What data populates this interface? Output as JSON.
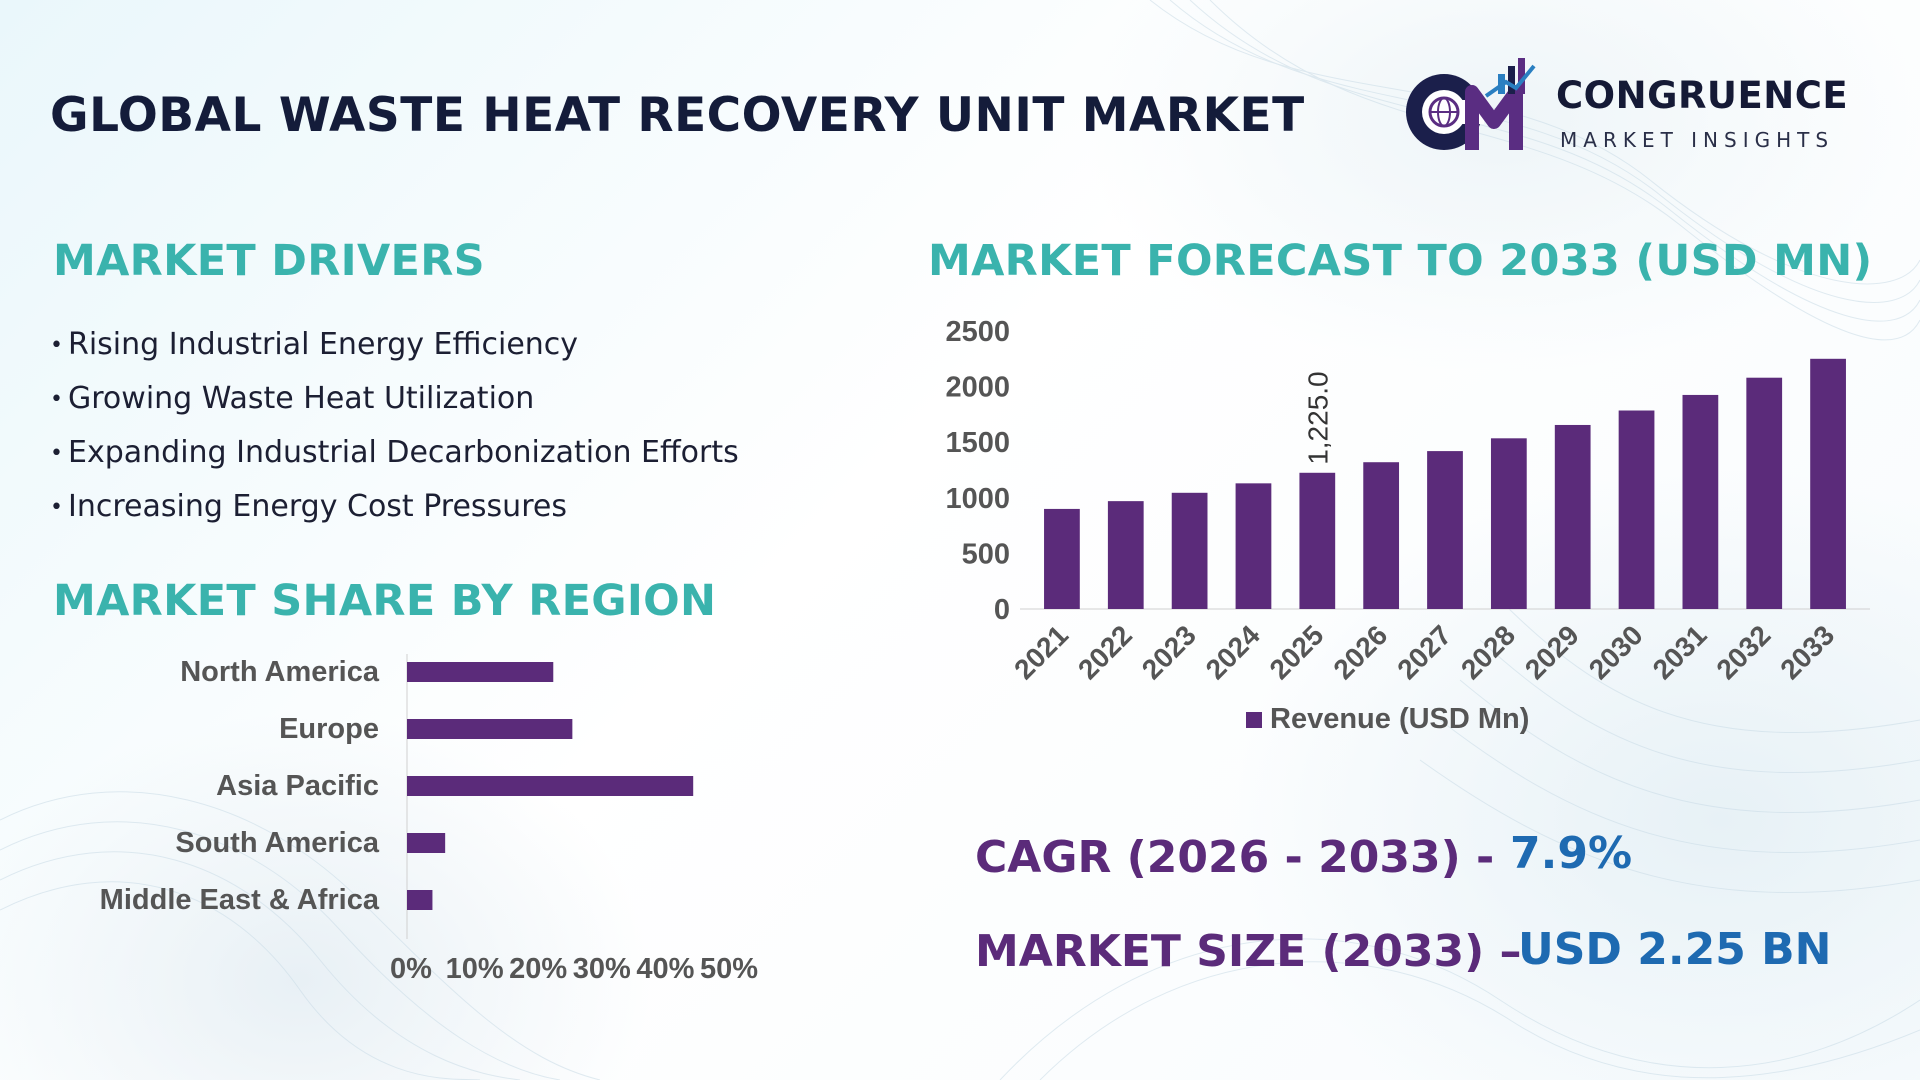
{
  "header": {
    "title": "GLOBAL WASTE HEAT RECOVERY UNIT MARKET"
  },
  "logo": {
    "name": "CONGRUENCE",
    "tagline": "MARKET INSIGHTS",
    "brand_colors": [
      "#1b1f4b",
      "#5a2d82",
      "#2a7fc1"
    ]
  },
  "drivers": {
    "heading": "MARKET DRIVERS",
    "items": [
      "Rising Industrial Energy Efficiency",
      "Growing Waste Heat Utilization",
      "Expanding Industrial Decarbonization Efforts",
      "Increasing Energy Cost Pressures"
    ]
  },
  "region": {
    "heading": "MARKET SHARE BY REGION"
  },
  "forecast": {
    "heading": "MARKET FORECAST TO 2033 (USD MN)"
  },
  "stats": {
    "cagr_label": "CAGR (2026 - 2033) -",
    "cagr_value": "7.9%",
    "size_label": "MARKET SIZE (2033) –",
    "size_value": "USD 2.25 BN"
  },
  "colors": {
    "heading": "#3ab3ad",
    "bar": "#5b2b7a",
    "stat_label": "#5b2b7a",
    "stat_value": "#1e6ab1",
    "title": "#141c3a"
  },
  "chart_data": [
    {
      "type": "bar",
      "orientation": "horizontal",
      "categories": [
        "North America",
        "Europe",
        "Asia Pacific",
        "South America",
        "Middle East & Africa"
      ],
      "values": [
        23,
        26,
        45,
        6,
        4
      ],
      "unit": "%",
      "xlim": [
        0,
        50
      ],
      "xticks": [
        "0%",
        "10%",
        "20%",
        "30%",
        "40%",
        "50%"
      ],
      "grid": false,
      "legend": false
    },
    {
      "type": "bar",
      "categories": [
        "2021",
        "2022",
        "2023",
        "2024",
        "2025",
        "2026",
        "2027",
        "2028",
        "2029",
        "2030",
        "2031",
        "2032",
        "2033"
      ],
      "series": [
        {
          "name": "Revenue (USD Mn)",
          "values": [
            900,
            970,
            1045,
            1130,
            1225,
            1320,
            1420,
            1535,
            1655,
            1785,
            1925,
            2080,
            2250
          ]
        }
      ],
      "data_labels": [
        {
          "category": "2025",
          "text": "1,225.0"
        }
      ],
      "ylim": [
        0,
        2500
      ],
      "yticks": [
        "0",
        "500",
        "1000",
        "1500",
        "2000",
        "2500"
      ],
      "grid": false,
      "legend": "bottom"
    }
  ]
}
